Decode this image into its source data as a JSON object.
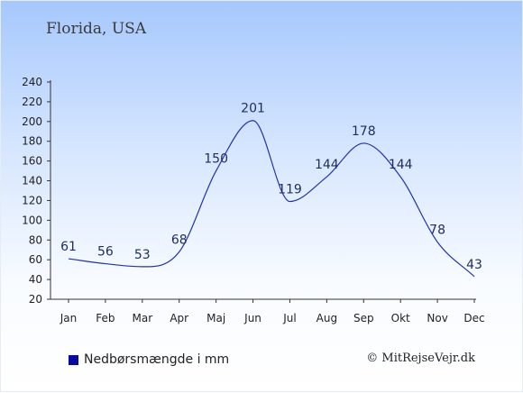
{
  "location": "Florida, USA",
  "legend": {
    "label": "Nedbørsmængde i mm",
    "color": "#0a0aa0"
  },
  "copyright": "© MitRejseVejr.dk",
  "colors": {
    "line": "#2233aa",
    "axis": "#333333",
    "label": "#1e2d5a"
  },
  "chart_data": {
    "type": "line",
    "categories": [
      "Jan",
      "Feb",
      "Mar",
      "Apr",
      "Maj",
      "Jun",
      "Jul",
      "Aug",
      "Sep",
      "Okt",
      "Nov",
      "Dec"
    ],
    "series": [
      {
        "name": "Nedbørsmængde i mm",
        "values": [
          61,
          56,
          53,
          68,
          150,
          201,
          119,
          144,
          178,
          144,
          78,
          43
        ]
      }
    ],
    "ylim": [
      20,
      240
    ],
    "yticks": [
      20,
      40,
      60,
      80,
      100,
      120,
      140,
      160,
      180,
      200,
      220,
      240
    ],
    "grid": false,
    "legend_position": "bottom-left"
  }
}
